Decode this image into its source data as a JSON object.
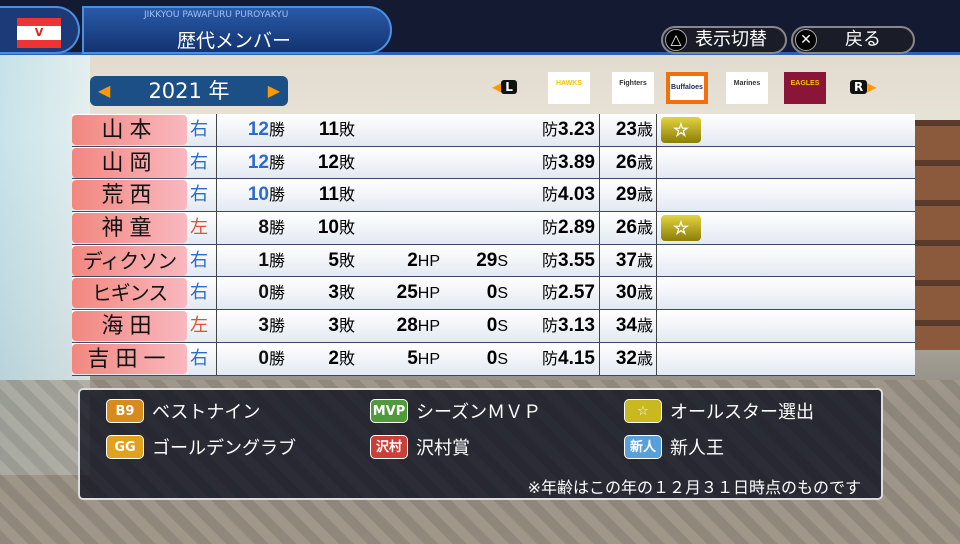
{
  "header": {
    "emblem": "V",
    "subtitle": "JIKKYOU PAWAFURU PUROYAKYU",
    "title": "歴代メンバー"
  },
  "buttons": {
    "toggle": {
      "icon": "triangle-icon",
      "glyph": "△",
      "label": "表示切替"
    },
    "back": {
      "icon": "cross-icon",
      "glyph": "✕",
      "label": "戻る"
    }
  },
  "year": {
    "label": "2021 年",
    "prev": "◀",
    "next": "▶"
  },
  "team_nav": {
    "left": "L",
    "right": "R",
    "teams": [
      {
        "name": "HAWKS",
        "selected": false,
        "color": "#f5c400"
      },
      {
        "name": "Fighters",
        "selected": false,
        "color": "#333"
      },
      {
        "name": "Buffaloes",
        "selected": true,
        "color": "#1a2a5a"
      },
      {
        "name": "Marines",
        "selected": false,
        "color": "#333"
      },
      {
        "name": "EAGLES",
        "selected": false,
        "color": "#8a1538"
      }
    ]
  },
  "units": {
    "w": "勝",
    "l": "敗",
    "hp": "HP",
    "s": "S",
    "era": "防",
    "age": "歳"
  },
  "players": [
    {
      "name": "山本",
      "kana": false,
      "hand": "右",
      "w": "12",
      "l": "11",
      "hp": "",
      "s": "",
      "era": "3.23",
      "age": "23",
      "allstar": true,
      "hl": true
    },
    {
      "name": "山岡",
      "kana": false,
      "hand": "右",
      "w": "12",
      "l": "12",
      "hp": "",
      "s": "",
      "era": "3.89",
      "age": "26",
      "allstar": false,
      "hl": true
    },
    {
      "name": "荒西",
      "kana": false,
      "hand": "右",
      "w": "10",
      "l": "11",
      "hp": "",
      "s": "",
      "era": "4.03",
      "age": "29",
      "allstar": false,
      "hl": true
    },
    {
      "name": "神童",
      "kana": false,
      "hand": "左",
      "w": "8",
      "l": "10",
      "hp": "",
      "s": "",
      "era": "2.89",
      "age": "26",
      "allstar": true,
      "hl": false
    },
    {
      "name": "ディクソン",
      "kana": true,
      "hand": "右",
      "w": "1",
      "l": "5",
      "hp": "2",
      "s": "29",
      "era": "3.55",
      "age": "37",
      "allstar": false,
      "hl": false
    },
    {
      "name": "ヒギンス",
      "kana": true,
      "hand": "右",
      "w": "0",
      "l": "3",
      "hp": "25",
      "s": "0",
      "era": "2.57",
      "age": "30",
      "allstar": false,
      "hl": false
    },
    {
      "name": "海田",
      "kana": false,
      "hand": "左",
      "w": "3",
      "l": "3",
      "hp": "28",
      "s": "0",
      "era": "3.13",
      "age": "34",
      "allstar": false,
      "hl": false
    },
    {
      "name": "吉田一",
      "kana": false,
      "hand": "右",
      "w": "0",
      "l": "2",
      "hp": "5",
      "s": "0",
      "era": "4.15",
      "age": "32",
      "allstar": false,
      "hl": false
    }
  ],
  "legend": {
    "items": [
      {
        "badge": "B9",
        "label": "ベストナイン",
        "color": "#d98a1c"
      },
      {
        "badge": "MVP",
        "label": "シーズンＭＶＰ",
        "color": "#4f9a3a"
      },
      {
        "badge": "☆",
        "label": "オールスター選出",
        "color": "#c9b820"
      },
      {
        "badge": "GG",
        "label": "ゴールデングラブ",
        "color": "#e0a020"
      },
      {
        "badge": "沢村",
        "label": "沢村賞",
        "color": "#c8403a"
      },
      {
        "badge": "新人",
        "label": "新人王",
        "color": "#5aa0d8"
      }
    ],
    "note": "※年齢はこの年の１２月３１日時点のものです"
  },
  "colors": {
    "right_hand": "#2a6cc8",
    "left_hand": "#e05030",
    "win_highlight": "#2a6cc8"
  }
}
